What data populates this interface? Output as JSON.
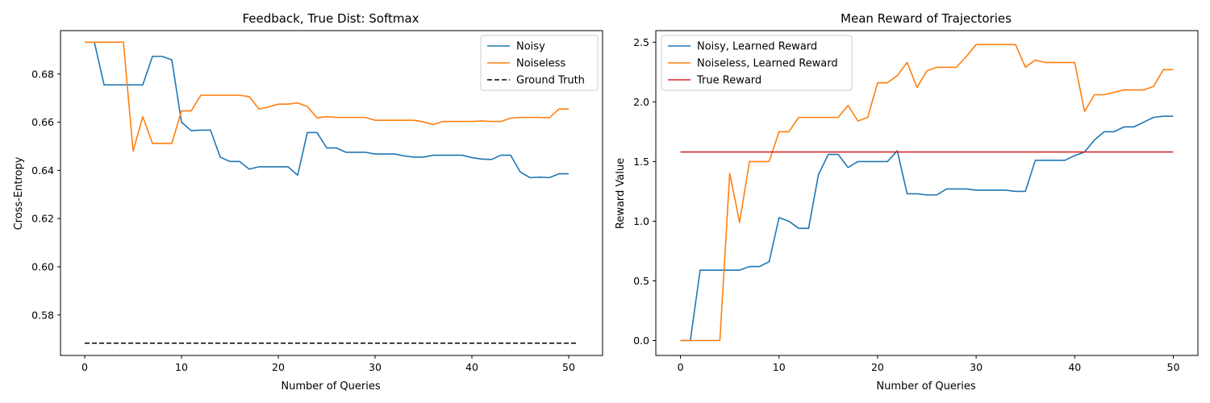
{
  "chart_data": [
    {
      "type": "line",
      "title": "Feedback, True Dist: Softmax",
      "xlabel": "Number of Queries",
      "ylabel": "Cross-Entropy",
      "xlim": [
        -2.5,
        53.5
      ],
      "ylim": [
        0.5632,
        0.698
      ],
      "xticks": [
        0,
        10,
        20,
        30,
        40,
        50
      ],
      "yticks": [
        0.58,
        0.6,
        0.62,
        0.64,
        0.66,
        0.68
      ],
      "ytick_labels": [
        "0.58",
        "0.60",
        "0.62",
        "0.64",
        "0.66",
        "0.68"
      ],
      "legend": "top-right",
      "series": [
        {
          "name": "Noisy",
          "color": "#1f77b4",
          "dashed": false,
          "x": [
            0,
            1,
            2,
            3,
            4,
            5,
            6,
            7,
            8,
            9,
            10,
            11,
            12,
            13,
            14,
            15,
            16,
            17,
            18,
            19,
            20,
            21,
            22,
            23,
            24,
            25,
            26,
            27,
            28,
            29,
            30,
            31,
            32,
            33,
            34,
            35,
            36,
            37,
            38,
            39,
            40,
            41,
            42,
            43,
            44,
            45,
            46,
            47,
            48,
            49,
            50
          ],
          "y": [
            0.6932,
            0.6932,
            0.6755,
            0.6755,
            0.6755,
            0.6755,
            0.6755,
            0.6873,
            0.6873,
            0.6859,
            0.66,
            0.6565,
            0.6567,
            0.6567,
            0.6455,
            0.6437,
            0.6437,
            0.6405,
            0.6415,
            0.6415,
            0.6415,
            0.6415,
            0.638,
            0.6557,
            0.6557,
            0.6493,
            0.6493,
            0.6475,
            0.6475,
            0.6475,
            0.6468,
            0.6468,
            0.6468,
            0.646,
            0.6455,
            0.6455,
            0.6463,
            0.6463,
            0.6463,
            0.6463,
            0.6453,
            0.6447,
            0.6445,
            0.6463,
            0.6463,
            0.6393,
            0.637,
            0.6372,
            0.637,
            0.6386,
            0.6386
          ]
        },
        {
          "name": "Noiseless",
          "color": "#ff7f0e",
          "dashed": false,
          "x": [
            0,
            1,
            2,
            3,
            4,
            5,
            6,
            7,
            8,
            9,
            10,
            11,
            12,
            13,
            14,
            15,
            16,
            17,
            18,
            19,
            20,
            21,
            22,
            23,
            24,
            25,
            26,
            27,
            28,
            29,
            30,
            31,
            32,
            33,
            34,
            35,
            36,
            37,
            38,
            39,
            40,
            41,
            42,
            43,
            44,
            45,
            46,
            47,
            48,
            49,
            50
          ],
          "y": [
            0.6932,
            0.6932,
            0.6932,
            0.6932,
            0.6932,
            0.648,
            0.6623,
            0.6512,
            0.6512,
            0.6512,
            0.6647,
            0.6647,
            0.6712,
            0.6712,
            0.6712,
            0.6712,
            0.6712,
            0.6706,
            0.6655,
            0.6663,
            0.6675,
            0.6675,
            0.668,
            0.6665,
            0.6618,
            0.6623,
            0.662,
            0.662,
            0.662,
            0.662,
            0.6608,
            0.6608,
            0.6608,
            0.6608,
            0.6608,
            0.6601,
            0.659,
            0.6603,
            0.6603,
            0.6603,
            0.6603,
            0.6605,
            0.6603,
            0.6603,
            0.6617,
            0.662,
            0.662,
            0.662,
            0.6618,
            0.6655,
            0.6655
          ]
        },
        {
          "name": "Ground Truth",
          "color": "#000000",
          "dashed": true,
          "x": [
            0,
            51
          ],
          "y": [
            0.5683,
            0.5683
          ]
        }
      ]
    },
    {
      "type": "line",
      "title": "Mean Reward of Trajectories",
      "xlabel": "Number of Queries",
      "ylabel": "Reward Value",
      "xlim": [
        -2.5,
        52.5
      ],
      "ylim": [
        -0.125,
        2.597
      ],
      "xticks": [
        0,
        10,
        20,
        30,
        40,
        50
      ],
      "yticks": [
        0.0,
        0.5,
        1.0,
        1.5,
        2.0,
        2.5
      ],
      "ytick_labels": [
        "0.0",
        "0.5",
        "1.0",
        "1.5",
        "2.0",
        "2.5"
      ],
      "legend": "top-left",
      "series": [
        {
          "name": "Noisy, Learned Reward",
          "color": "#1f77b4",
          "dashed": false,
          "x": [
            0,
            1,
            2,
            3,
            4,
            5,
            6,
            7,
            8,
            9,
            10,
            11,
            12,
            13,
            14,
            15,
            16,
            17,
            18,
            19,
            20,
            21,
            22,
            23,
            24,
            25,
            26,
            27,
            28,
            29,
            30,
            31,
            32,
            33,
            34,
            35,
            36,
            37,
            38,
            39,
            40,
            41,
            42,
            43,
            44,
            45,
            46,
            47,
            48,
            49,
            50
          ],
          "y": [
            0.0,
            0.0,
            0.59,
            0.59,
            0.59,
            0.59,
            0.59,
            0.62,
            0.62,
            0.66,
            1.03,
            1.0,
            0.94,
            0.94,
            1.39,
            1.56,
            1.56,
            1.45,
            1.5,
            1.5,
            1.5,
            1.5,
            1.59,
            1.23,
            1.23,
            1.22,
            1.22,
            1.27,
            1.27,
            1.27,
            1.26,
            1.26,
            1.26,
            1.26,
            1.25,
            1.25,
            1.51,
            1.51,
            1.51,
            1.51,
            1.55,
            1.58,
            1.68,
            1.75,
            1.75,
            1.79,
            1.79,
            1.83,
            1.87,
            1.88,
            1.88
          ]
        },
        {
          "name": "Noiseless, Learned Reward",
          "color": "#ff7f0e",
          "dashed": false,
          "x": [
            0,
            1,
            2,
            3,
            4,
            5,
            6,
            7,
            8,
            9,
            10,
            11,
            12,
            13,
            14,
            15,
            16,
            17,
            18,
            19,
            20,
            21,
            22,
            23,
            24,
            25,
            26,
            27,
            28,
            29,
            30,
            31,
            32,
            33,
            34,
            35,
            36,
            37,
            38,
            39,
            40,
            41,
            42,
            43,
            44,
            45,
            46,
            47,
            48,
            49,
            50
          ],
          "y": [
            0.0,
            0.0,
            0.0,
            0.0,
            0.0,
            1.4,
            0.99,
            1.5,
            1.5,
            1.5,
            1.75,
            1.75,
            1.87,
            1.87,
            1.87,
            1.87,
            1.87,
            1.97,
            1.84,
            1.87,
            2.16,
            2.16,
            2.22,
            2.33,
            2.12,
            2.26,
            2.29,
            2.29,
            2.29,
            2.38,
            2.48,
            2.48,
            2.48,
            2.48,
            2.48,
            2.29,
            2.35,
            2.33,
            2.33,
            2.33,
            2.33,
            1.92,
            2.06,
            2.06,
            2.08,
            2.1,
            2.1,
            2.1,
            2.13,
            2.27,
            2.27
          ]
        },
        {
          "name": "True Reward",
          "color": "#d62728",
          "dashed": false,
          "x": [
            0,
            50
          ],
          "y": [
            1.58,
            1.58
          ]
        }
      ]
    }
  ]
}
